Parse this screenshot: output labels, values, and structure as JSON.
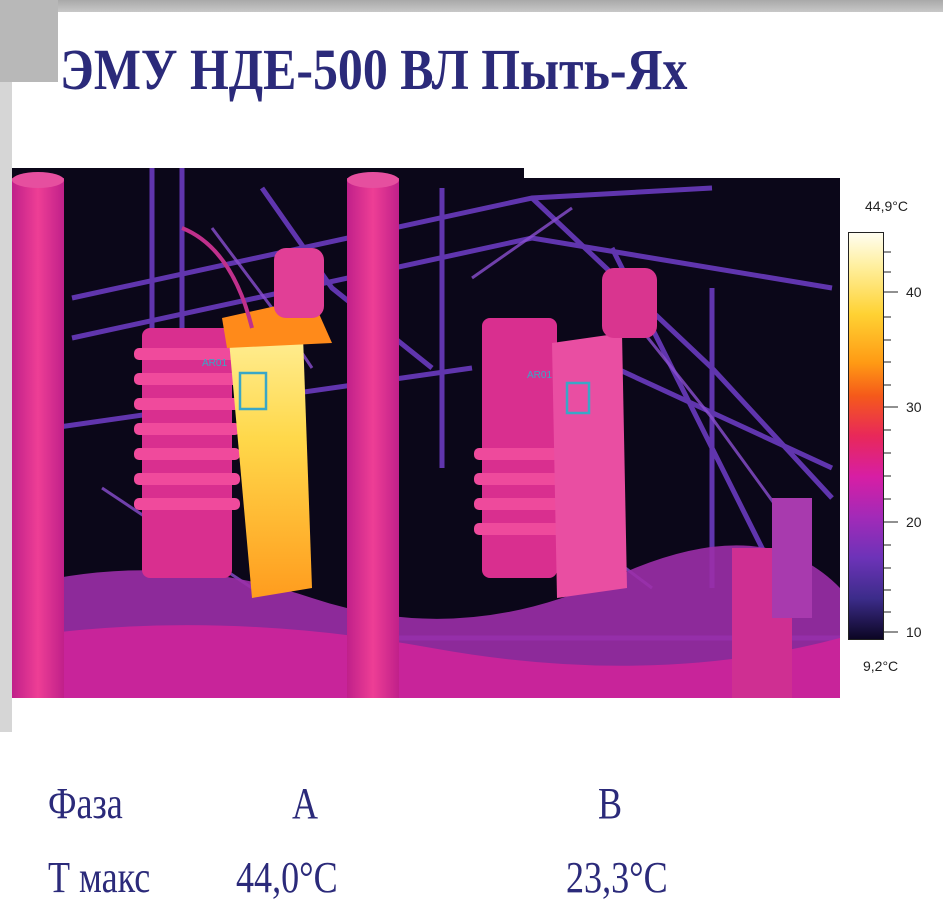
{
  "title": "ЭМУ НДЕ-500 ВЛ Пыть-Ях",
  "thermal_image": {
    "roi_label_a": "AR01",
    "roi_label_b": "AR01",
    "scale_max": "44,9°C",
    "scale_min": "9,2°C",
    "scale_ticks": [
      "40",
      "30",
      "20",
      "10"
    ],
    "roi_color": "#3aa7c7"
  },
  "table": {
    "row1": {
      "label": "Фаза",
      "a": "A",
      "b": "B"
    },
    "row2": {
      "label": "Т макс",
      "a": "44,0°C",
      "b": "23,3°C"
    }
  },
  "colors": {
    "title": "#2b2a7a",
    "frame": "#b8b8b8"
  }
}
